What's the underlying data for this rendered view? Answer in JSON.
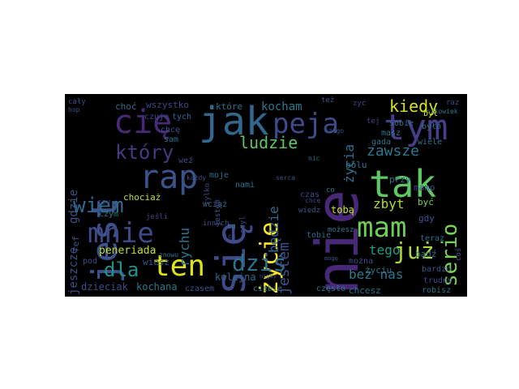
{
  "colors": {
    "background": "#000000",
    "page": "#ffffff"
  },
  "wordcloud": {
    "words": [
      {
        "text": "nie",
        "color": "#482878"
      },
      {
        "text": "się",
        "color": "#3e4a89"
      },
      {
        "text": "jak",
        "color": "#31688e"
      },
      {
        "text": "tym",
        "color": "#433e85"
      },
      {
        "text": "tak",
        "color": "#5ec962"
      },
      {
        "text": "jest",
        "color": "#3b528b"
      },
      {
        "text": "cię",
        "color": "#482878"
      },
      {
        "text": "peja",
        "color": "#3e4a89"
      },
      {
        "text": "rap",
        "color": "#3b528b"
      },
      {
        "text": "mam",
        "color": "#6ece58"
      },
      {
        "text": "mnie",
        "color": "#3e4a89"
      },
      {
        "text": "wiem",
        "color": "#31688e"
      },
      {
        "text": "ten",
        "color": "#dde318"
      },
      {
        "text": "już",
        "color": "#addc30"
      },
      {
        "text": "życie",
        "color": "#fde725"
      },
      {
        "text": "dziś",
        "color": "#2c728e"
      },
      {
        "text": "dla",
        "color": "#21918c"
      },
      {
        "text": "serio",
        "color": "#7ad151"
      },
      {
        "text": "który",
        "color": "#443983"
      },
      {
        "text": "kiedy",
        "color": "#d8e219"
      },
      {
        "text": "ludzie",
        "color": "#5ec962"
      },
      {
        "text": "zawsze",
        "color": "#2a788e"
      },
      {
        "text": "jestem",
        "color": "#3b528b"
      },
      {
        "text": "bez nas",
        "color": "#2a788e"
      },
      {
        "text": "zbyt",
        "color": "#addc30"
      },
      {
        "text": "tego",
        "color": "#1f9e89"
      },
      {
        "text": "rychu",
        "color": "#2c728e"
      },
      {
        "text": "będzie",
        "color": "#31688e"
      },
      {
        "text": "kocham",
        "color": "#2a788e"
      },
      {
        "text": "gdzie",
        "color": "#39568c"
      },
      {
        "text": "życia",
        "color": "#2c728e"
      },
      {
        "text": "jeszcze",
        "color": "#3b528b"
      },
      {
        "text": "peneriada",
        "color": "#c2df23"
      },
      {
        "text": "kolejna",
        "color": "#31688e"
      },
      {
        "text": "dzieciak",
        "color": "#3e4a89"
      },
      {
        "text": "kochana",
        "color": "#2a788e"
      },
      {
        "text": "wszystko",
        "color": "#3e4a89"
      },
      {
        "text": "choć",
        "color": "#31688e"
      },
      {
        "text": "które",
        "color": "#2c728e"
      },
      {
        "text": "czuję",
        "color": "#3e4a89"
      },
      {
        "text": "tych",
        "color": "#31688e"
      },
      {
        "text": "chcę",
        "color": "#3b528b"
      },
      {
        "text": "sam",
        "color": "#2c728e"
      },
      {
        "text": "weź",
        "color": "#3e4a89"
      },
      {
        "text": "moje",
        "color": "#2c728e"
      },
      {
        "text": "nami",
        "color": "#2a788e"
      },
      {
        "text": "wciąż",
        "color": "#31688e"
      },
      {
        "text": "chociaż",
        "color": "#bddf26"
      },
      {
        "text": "czym",
        "color": "#2a788e"
      },
      {
        "text": "czy",
        "color": "#39568c"
      },
      {
        "text": "ref",
        "color": "#3b528b"
      },
      {
        "text": "wiesz",
        "color": "#39568c"
      },
      {
        "text": "pod",
        "color": "#3e4a89"
      },
      {
        "text": "czasem",
        "color": "#3b528b"
      },
      {
        "text": "ciebie",
        "color": "#2a788e"
      },
      {
        "text": "tobą",
        "color": "#c8e020"
      },
      {
        "text": "czas",
        "color": "#3e4a89"
      },
      {
        "text": "wiele",
        "color": "#2c728e"
      },
      {
        "text": "gdy",
        "color": "#3b528b"
      },
      {
        "text": "teraz",
        "color": "#2c728e"
      },
      {
        "text": "bądź",
        "color": "#2c728e"
      },
      {
        "text": "bardzo",
        "color": "#3b528b"
      },
      {
        "text": "trudny",
        "color": "#3e4a89"
      },
      {
        "text": "robisz",
        "color": "#2c728e"
      },
      {
        "text": "życiu",
        "color": "#2a788e"
      },
      {
        "text": "można",
        "color": "#3e4a89"
      },
      {
        "text": "chcesz",
        "color": "#2c728e"
      },
      {
        "text": "często",
        "color": "#2a788e"
      },
      {
        "text": "tobie",
        "color": "#31688e"
      },
      {
        "text": "mamo",
        "color": "#3e4a89"
      },
      {
        "text": "być",
        "color": "#7ad151"
      },
      {
        "text": "bólu",
        "color": "#2a788e"
      },
      {
        "text": "przy",
        "color": "#2c728e"
      },
      {
        "text": "masz",
        "color": "#2a788e"
      },
      {
        "text": "sobie",
        "color": "#2c728e"
      },
      {
        "text": "gada",
        "color": "#2c728e"
      },
      {
        "text": "było",
        "color": "#2c728e"
      },
      {
        "text": "był",
        "color": "#dde318"
      },
      {
        "text": "raz",
        "color": "#3e4a89"
      },
      {
        "text": "człowiek",
        "color": "#2a788e"
      },
      {
        "text": "cały",
        "color": "#3e4a89"
      },
      {
        "text": "hop",
        "color": "#39568c"
      },
      {
        "text": "tylko",
        "color": "#3e4a89"
      },
      {
        "text": "styl",
        "color": "#3e4a89"
      },
      {
        "text": "jeśli",
        "color": "#3e4a89"
      },
      {
        "text": "innych",
        "color": "#3e4a89"
      },
      {
        "text": "wiedz",
        "color": "#3b528b"
      },
      {
        "text": "możesz",
        "color": "#2a788e"
      },
      {
        "text": "znowu",
        "color": "#2c728e"
      },
      {
        "text": "chcę",
        "color": "#3e4a89"
      },
      {
        "text": "tej",
        "color": "#3e4a89"
      },
      {
        "text": "co",
        "color": "#2c728e"
      },
      {
        "text": "coś",
        "color": "#3b528b"
      },
      {
        "text": "zyć",
        "color": "#3e4a89"
      },
      {
        "text": "jestem",
        "color": "#3b528b"
      },
      {
        "text": "czego",
        "color": "#3b528b"
      },
      {
        "text": "też",
        "color": "#39568c"
      },
      {
        "text": "serca",
        "color": "#3b528b"
      },
      {
        "text": "każdy",
        "color": "#3b528b"
      },
      {
        "text": "nigdy",
        "color": "#3e4a89"
      },
      {
        "text": "mogę",
        "color": "#3b528b"
      },
      {
        "text": "tu",
        "color": "#2c728e"
      },
      {
        "text": "ich",
        "color": "#3e4a89"
      },
      {
        "text": "nic",
        "color": "#2c728e"
      }
    ]
  }
}
